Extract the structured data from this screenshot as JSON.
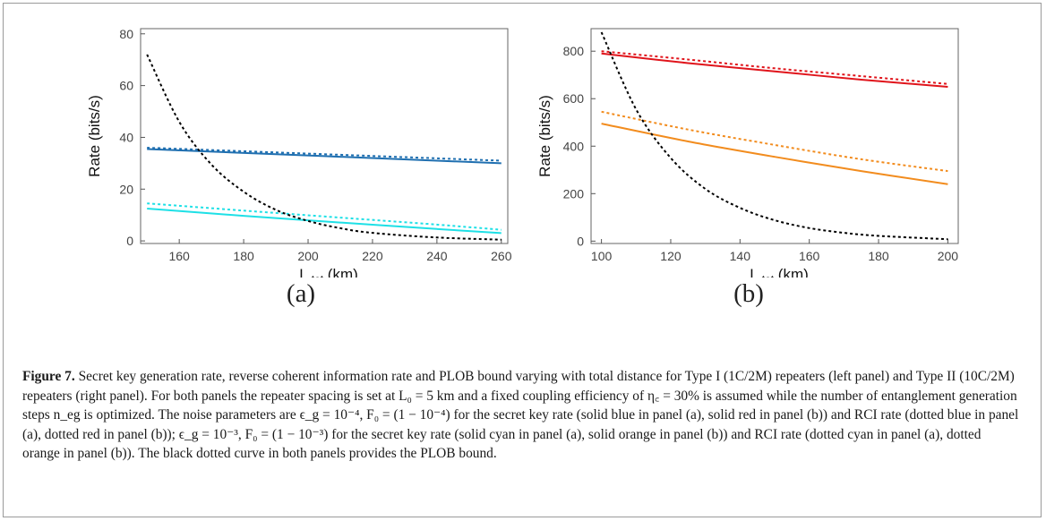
{
  "chart_data": [
    {
      "type": "line",
      "panel": "(a)",
      "xlabel": "L",
      "xlabel_sub": "tot",
      "xlabel_unit": "(km)",
      "ylabel": "Rate (bits/s)",
      "xlim": [
        148,
        262
      ],
      "ylim": [
        -1,
        82
      ],
      "xticks": [
        160,
        180,
        200,
        220,
        240,
        260
      ],
      "yticks": [
        0,
        20,
        40,
        60,
        80
      ],
      "series": [
        {
          "key": "skr-blue",
          "style": "solid",
          "color": "#1f6fb0",
          "x": [
            150,
            260
          ],
          "y": [
            35.5,
            30.0
          ]
        },
        {
          "key": "rci-blue",
          "style": "dotted",
          "color": "#1f6fb0",
          "x": [
            150,
            260
          ],
          "y": [
            36.0,
            31.0
          ]
        },
        {
          "key": "skr-cyan",
          "style": "solid",
          "color": "#1ee0e6",
          "x": [
            150,
            180,
            210,
            240,
            260
          ],
          "y": [
            12.5,
            9.7,
            7.1,
            4.6,
            3.0
          ]
        },
        {
          "key": "rci-cyan",
          "style": "dotted",
          "color": "#1ee0e6",
          "x": [
            150,
            180,
            210,
            240,
            260
          ],
          "y": [
            14.5,
            11.7,
            9.0,
            6.3,
            4.3
          ]
        },
        {
          "key": "plob",
          "style": "dotted",
          "color": "#000000",
          "x": [
            150,
            160,
            170,
            180,
            190,
            200,
            210,
            220,
            240,
            260
          ],
          "y": [
            72,
            46,
            29.5,
            19,
            12,
            7.7,
            4.9,
            3.1,
            1.3,
            0.5
          ]
        }
      ]
    },
    {
      "type": "line",
      "panel": "(b)",
      "xlabel": "L",
      "xlabel_sub": "tot",
      "xlabel_unit": "(km)",
      "ylabel": "Rate (bits/s)",
      "xlim": [
        97,
        203
      ],
      "ylim": [
        -10,
        895
      ],
      "xticks": [
        100,
        120,
        140,
        160,
        180,
        200
      ],
      "yticks": [
        0,
        200,
        400,
        600,
        800
      ],
      "series": [
        {
          "key": "skr-red",
          "style": "solid",
          "color": "#e0141b",
          "x": [
            100,
            125,
            150,
            175,
            200
          ],
          "y": [
            790,
            750,
            715,
            680,
            650
          ]
        },
        {
          "key": "rci-red",
          "style": "dotted",
          "color": "#e0141b",
          "x": [
            100,
            125,
            150,
            175,
            200
          ],
          "y": [
            800,
            765,
            728,
            695,
            662
          ]
        },
        {
          "key": "skr-orange",
          "style": "solid",
          "color": "#f28c1e",
          "x": [
            100,
            125,
            150,
            175,
            200
          ],
          "y": [
            495,
            420,
            355,
            295,
            240
          ]
        },
        {
          "key": "rci-orange",
          "style": "dotted",
          "color": "#f28c1e",
          "x": [
            100,
            125,
            150,
            175,
            200
          ],
          "y": [
            545,
            470,
            405,
            345,
            295
          ]
        },
        {
          "key": "plob",
          "style": "dotted",
          "color": "#000000",
          "x": [
            100,
            110,
            120,
            130,
            140,
            150,
            160,
            170,
            180,
            200
          ],
          "y": [
            880,
            555,
            350,
            220,
            140,
            88,
            55,
            35,
            22,
            8
          ]
        }
      ]
    }
  ],
  "panel_labels": [
    "(a)",
    "(b)"
  ],
  "caption": {
    "figure_label": "Figure 7.",
    "text": "Secret key generation rate, reverse coherent information rate and PLOB bound varying with total distance for Type I (1C/2M) repeaters (left panel) and Type II (10C/2M) repeaters (right panel). For both panels the repeater spacing is set at L₀ = 5 km and a fixed coupling efficiency of η꜀ = 30% is assumed while the number of entanglement generation steps n_eg is optimized. The noise parameters are ϵ_g = 10⁻⁴, F₀ = (1 − 10⁻⁴) for the secret key rate (solid blue in panel (a), solid red in panel (b)) and RCI rate (dotted blue in panel (a), dotted red in panel (b)); ϵ_g = 10⁻³, F₀ = (1 − 10⁻³) for the secret key rate (solid cyan in panel (a), solid orange in panel (b)) and RCI rate (dotted cyan in panel (a), dotted orange in panel (b)). The black dotted curve in both panels provides the PLOB bound."
  }
}
